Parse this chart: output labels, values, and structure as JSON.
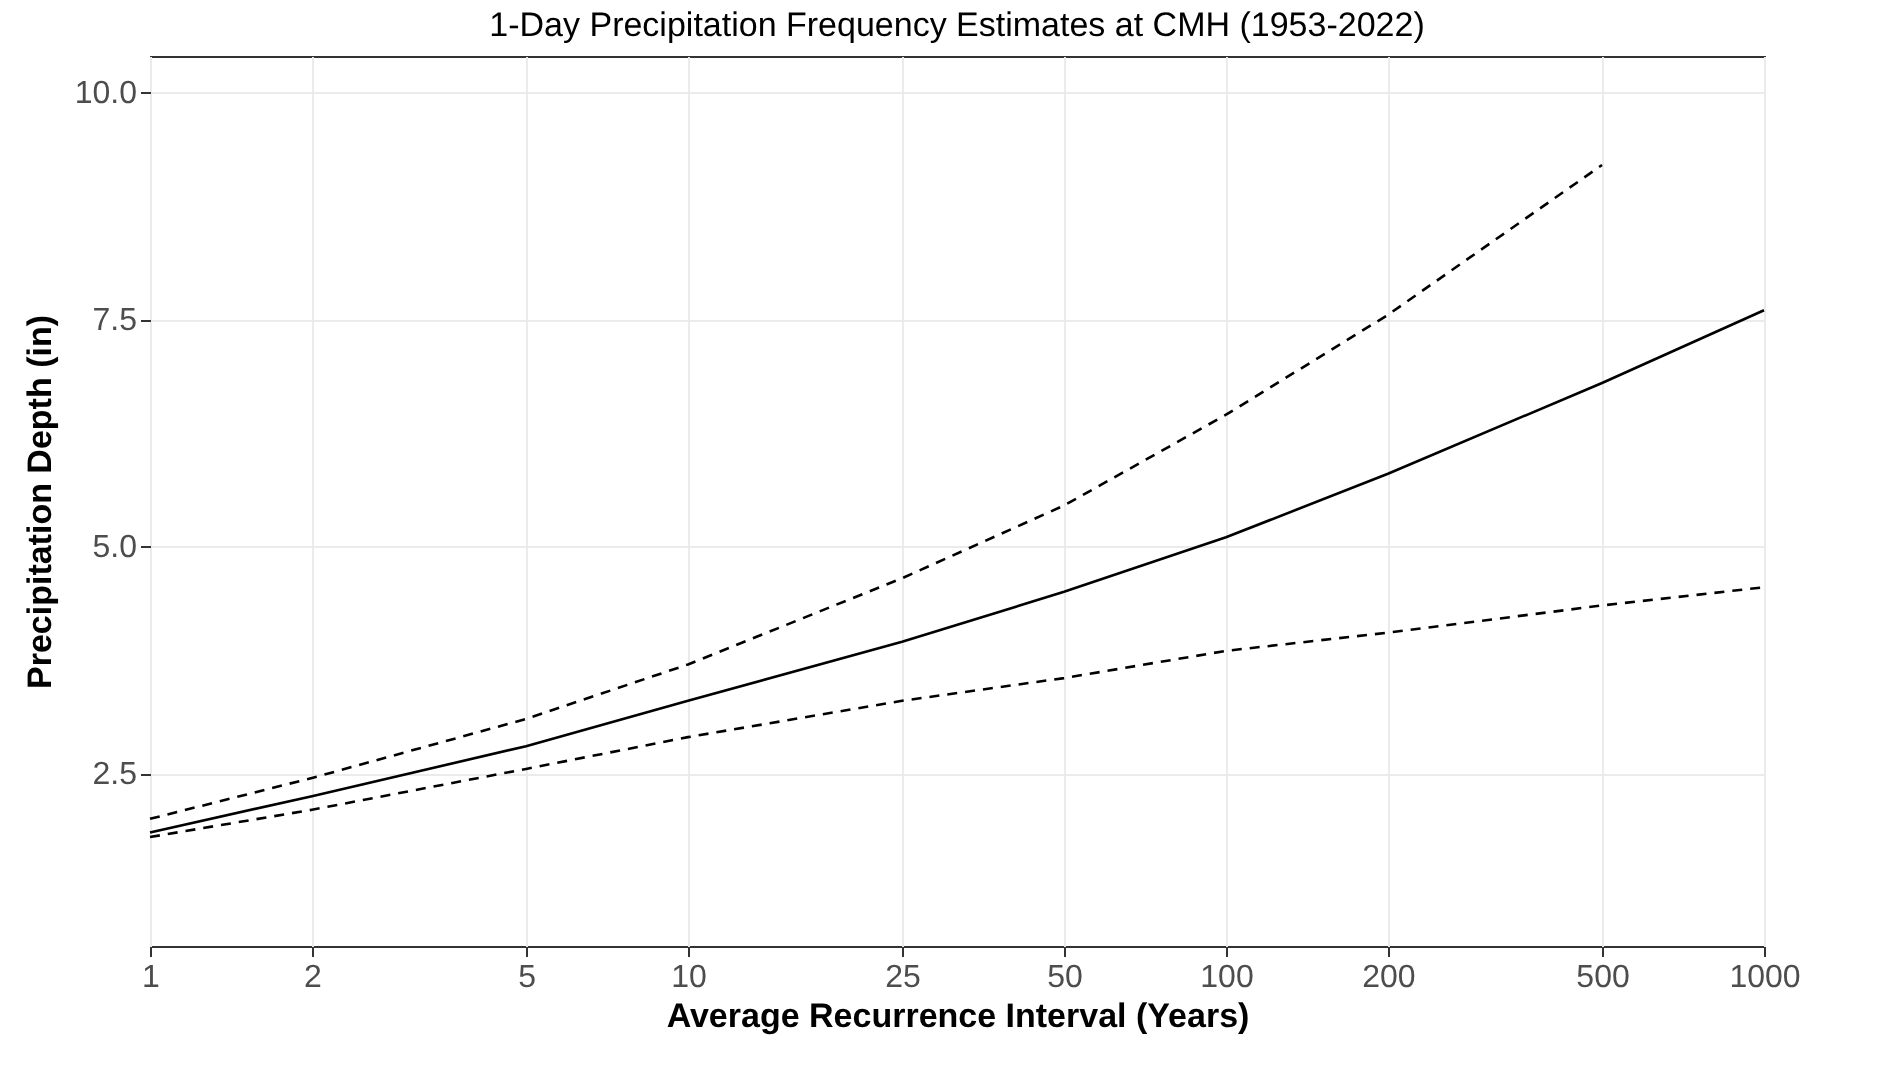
{
  "chart_data": {
    "type": "line",
    "title": "1-Day Precipitation Frequency Estimates at CMH (1953-2022)",
    "xlabel": "Average Recurrence Interval (Years)",
    "ylabel": "Precipitation Depth (in)",
    "x": [
      1,
      2,
      5,
      10,
      25,
      50,
      100,
      200,
      500,
      1000
    ],
    "series": [
      {
        "color": "#000000",
        "line_style": "solid",
        "values": [
          1.85,
          2.25,
          2.8,
          3.3,
          3.95,
          4.5,
          5.1,
          5.8,
          6.8,
          7.6
        ]
      },
      {
        "color": "#000000",
        "line_style": "dashed",
        "values": [
          2.0,
          2.45,
          3.1,
          3.7,
          4.65,
          5.45,
          6.45,
          7.55,
          9.2,
          null
        ]
      },
      {
        "color": "#000000",
        "line_style": "dashed",
        "values": [
          1.8,
          2.1,
          2.55,
          2.9,
          3.3,
          3.55,
          3.85,
          4.05,
          4.35,
          4.55
        ]
      }
    ],
    "log": "x",
    "xlim": [
      1,
      1000
    ],
    "xticks": [
      1,
      2,
      5,
      10,
      25,
      50,
      100,
      200,
      500,
      1000
    ],
    "ylim": [
      0.6,
      10.4
    ],
    "yticks": [
      2.5,
      {
        "value": 5,
        "label": "5.0"
      },
      7.5,
      {
        "value": 10,
        "label": "10.0"
      }
    ],
    "grid": true,
    "marker": "none"
  }
}
